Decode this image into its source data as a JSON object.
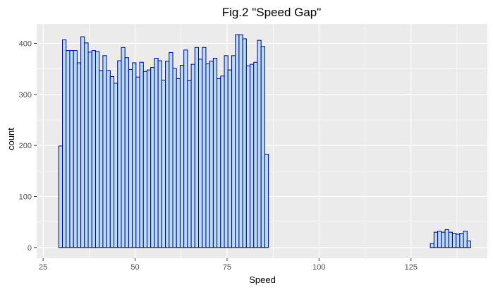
{
  "chart_data": {
    "type": "bar",
    "subtype": "histogram",
    "title": "Fig.2 \"Speed Gap\"",
    "xlabel": "Speed",
    "ylabel": "count",
    "xlim": [
      23.25,
      145.75
    ],
    "ylim": [
      -21,
      438
    ],
    "x_ticks": [
      {
        "value": 25,
        "label": "25"
      },
      {
        "value": 50,
        "label": "50"
      },
      {
        "value": 75,
        "label": "75"
      },
      {
        "value": 100,
        "label": "100"
      },
      {
        "value": 125,
        "label": "125"
      }
    ],
    "y_ticks": [
      {
        "value": 0,
        "label": "0"
      },
      {
        "value": 100,
        "label": "100"
      },
      {
        "value": 200,
        "label": "200"
      },
      {
        "value": 300,
        "label": "300"
      },
      {
        "value": 400,
        "label": "400"
      }
    ],
    "bin_start": 29.25,
    "bin_width": 1,
    "counts": [
      199,
      407,
      386,
      386,
      386,
      362,
      413,
      401,
      383,
      386,
      384,
      347,
      376,
      347,
      335,
      322,
      366,
      392,
      372,
      349,
      362,
      334,
      363,
      345,
      348,
      353,
      371,
      366,
      328,
      365,
      382,
      351,
      331,
      357,
      387,
      327,
      359,
      392,
      369,
      392,
      360,
      365,
      371,
      331,
      336,
      376,
      348,
      376,
      417,
      417,
      409,
      356,
      359,
      363,
      406,
      394,
      183,
      0,
      0,
      0,
      0,
      0,
      0,
      0,
      0,
      0,
      0,
      0,
      0,
      0,
      0,
      0,
      0,
      0,
      0,
      0,
      0,
      0,
      0,
      0,
      0,
      0,
      0,
      0,
      0,
      0,
      0,
      0,
      0,
      0,
      0,
      0,
      0,
      0,
      0,
      0,
      0,
      0,
      0,
      0,
      0,
      8,
      30,
      32,
      30,
      35,
      30,
      28,
      26,
      28,
      32,
      13
    ],
    "fill_color": "#b8dcf2",
    "line_color": "#00008b",
    "panel_background": "#ebebeb",
    "grid": true,
    "legend": "none"
  }
}
